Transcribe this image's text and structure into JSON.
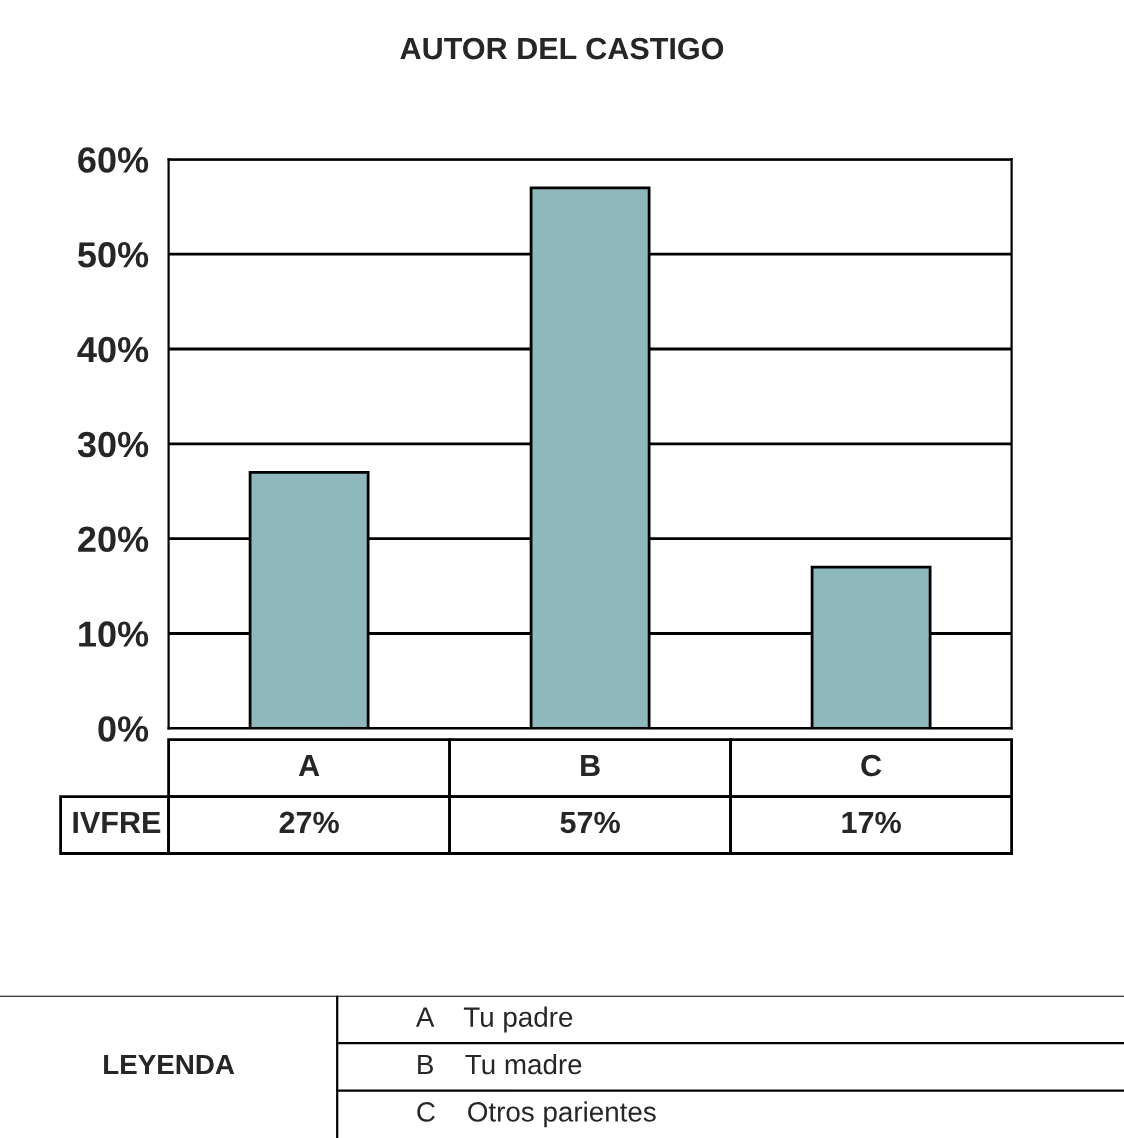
{
  "chart_data": {
    "type": "bar",
    "title": "AUTOR DEL CASTIGO",
    "categories": [
      "A",
      "B",
      "C"
    ],
    "series": [
      {
        "name": "IVFRE",
        "color": "#8fb8bd",
        "values": [
          27,
          57,
          17
        ],
        "value_labels": [
          "27%",
          "57%",
          "17%"
        ]
      }
    ],
    "ylim": [
      0,
      60
    ],
    "yticks": [
      {
        "value": 0,
        "label": "0%"
      },
      {
        "value": 10,
        "label": "10%"
      },
      {
        "value": 20,
        "label": "20%"
      },
      {
        "value": 30,
        "label": "30%"
      },
      {
        "value": 40,
        "label": "40%"
      },
      {
        "value": 50,
        "label": "50%"
      },
      {
        "value": 60,
        "label": "60%"
      }
    ],
    "grid": "y",
    "legend": false,
    "annotations": [
      "LEYENDA",
      "A    Tu padre",
      "B    Tu madre",
      "C    Otros parientes"
    ]
  }
}
